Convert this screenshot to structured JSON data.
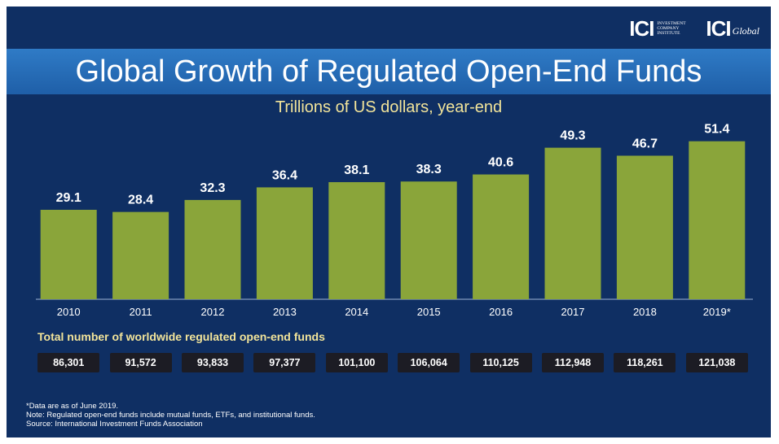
{
  "logos": {
    "ici_mark": "ICI",
    "ici_subtitle": "Investment Company Institute",
    "global_mark": "ICI",
    "global_word": "Global"
  },
  "title": "Global Growth of Regulated Open-End Funds",
  "subtitle": "Trillions of US dollars, year-end",
  "colors": {
    "background": "#0f2f63",
    "title_band": "#2f7bc6",
    "bar": "#8aa53a",
    "accent_text": "#f2e49a",
    "count_box": "#1c1c24"
  },
  "chart_data": {
    "type": "bar",
    "categories": [
      "2010",
      "2011",
      "2012",
      "2013",
      "2014",
      "2015",
      "2016",
      "2017",
      "2018",
      "2019*"
    ],
    "values": [
      29.1,
      28.4,
      32.3,
      36.4,
      38.1,
      38.3,
      40.6,
      49.3,
      46.7,
      51.4
    ],
    "value_labels": [
      "29.1",
      "28.4",
      "32.3",
      "36.4",
      "38.1",
      "38.3",
      "40.6",
      "49.3",
      "46.7",
      "51.4"
    ],
    "title": "Global Growth of Regulated Open-End Funds",
    "subtitle": "Trillions of US dollars, year-end",
    "xlabel": "",
    "ylabel": "",
    "grid": false,
    "legend": "none"
  },
  "fund_counts": {
    "label": "Total number of worldwide regulated open-end funds",
    "values": [
      "86,301",
      "91,572",
      "93,833",
      "97,377",
      "101,100",
      "106,064",
      "110,125",
      "112,948",
      "118,261",
      "121,038"
    ]
  },
  "notes": [
    "*Data are as of June 2019.",
    "Note: Regulated open-end funds include mutual funds, ETFs, and institutional funds.",
    "Source: International Investment Funds Association"
  ]
}
